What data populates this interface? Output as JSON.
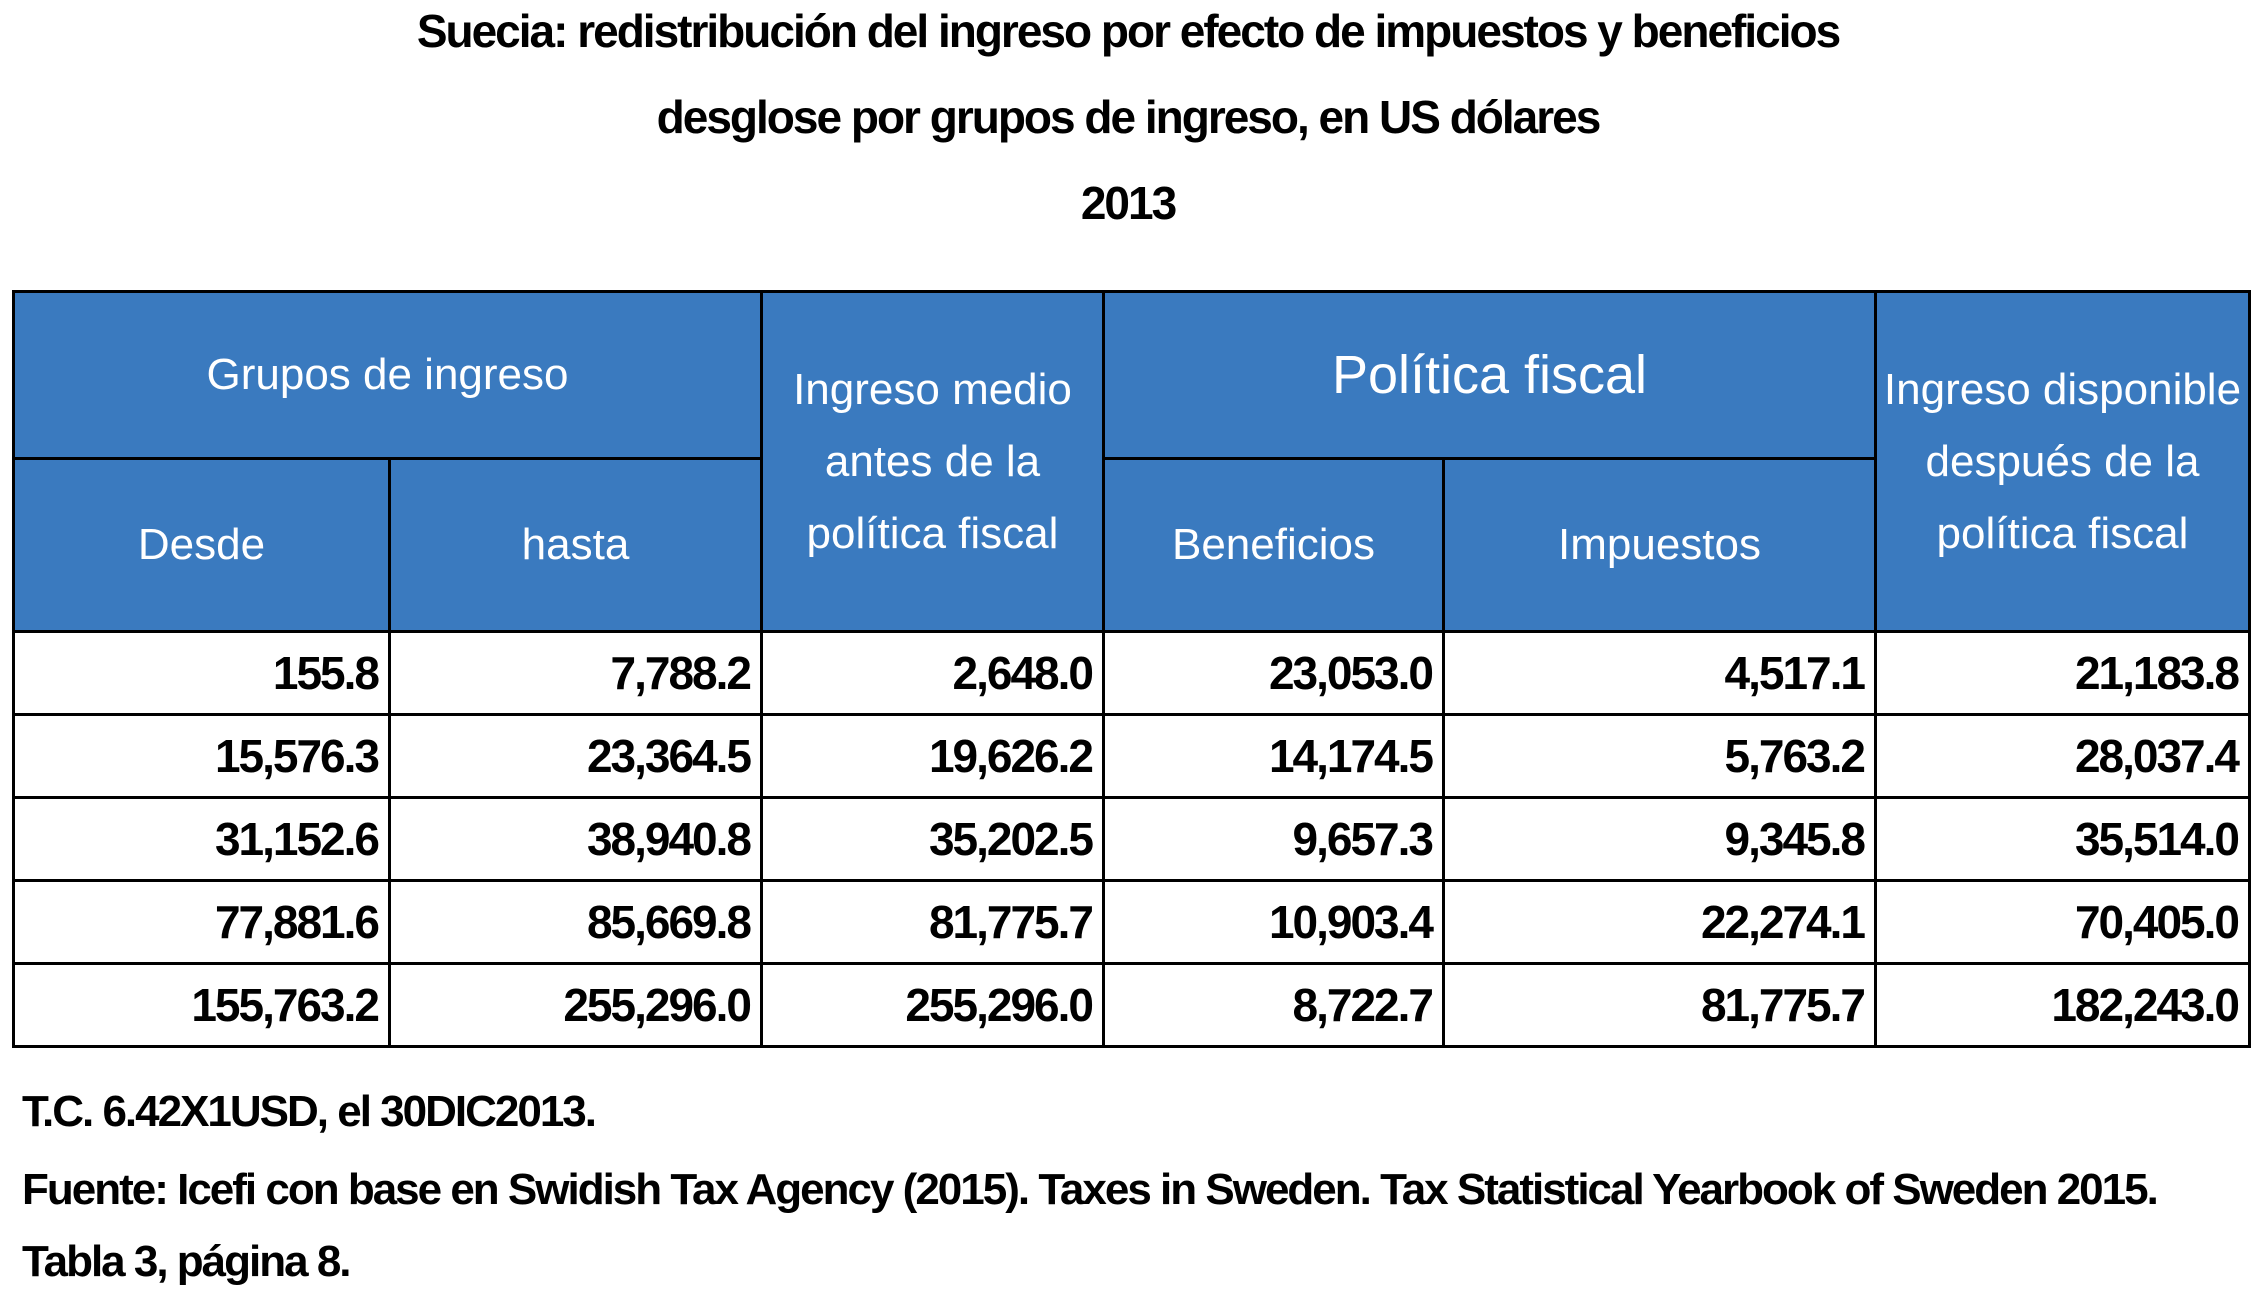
{
  "chart_data": {
    "type": "table",
    "title_lines": [
      "Suecia: redistribución del ingreso  por efecto de impuestos y beneficios",
      "desglose por grupos de ingreso, en US  dólares",
      "2013"
    ],
    "headers": {
      "grupos": "Grupos de ingreso",
      "desde": "Desde",
      "hasta": "hasta",
      "ingreso_medio": "Ingreso medio antes de la política fiscal",
      "politica": "Política  fiscal",
      "beneficios": "Beneficios",
      "impuestos": "Impuestos",
      "ingreso_disponible": "Ingreso disponible después de la política fiscal"
    },
    "rows": [
      [
        "155.8",
        "7,788.2",
        "2,648.0",
        "23,053.0",
        "4,517.1",
        "21,183.8"
      ],
      [
        "15,576.3",
        "23,364.5",
        "19,626.2",
        "14,174.5",
        "5,763.2",
        "28,037.4"
      ],
      [
        "31,152.6",
        "38,940.8",
        "35,202.5",
        "9,657.3",
        "9,345.8",
        "35,514.0"
      ],
      [
        "77,881.6",
        "85,669.8",
        "81,775.7",
        "10,903.4",
        "22,274.1",
        "70,405.0"
      ],
      [
        "155,763.2",
        "255,296.0",
        "255,296.0",
        "8,722.7",
        "81,775.7",
        "182,243.0"
      ]
    ],
    "notes": {
      "exchange_rate": "T.C. 6.42X1USD, el 30DIC2013.",
      "source": "Fuente: Icefi con base en Swidish Tax Agency (2015). Taxes in Sweden. Tax Statistical Yearbook of Sweden 2015.  Tabla 3, página 8."
    },
    "colors": {
      "header_bg": "#3a7abf",
      "header_text": "#ffffff",
      "border": "#000000"
    }
  }
}
